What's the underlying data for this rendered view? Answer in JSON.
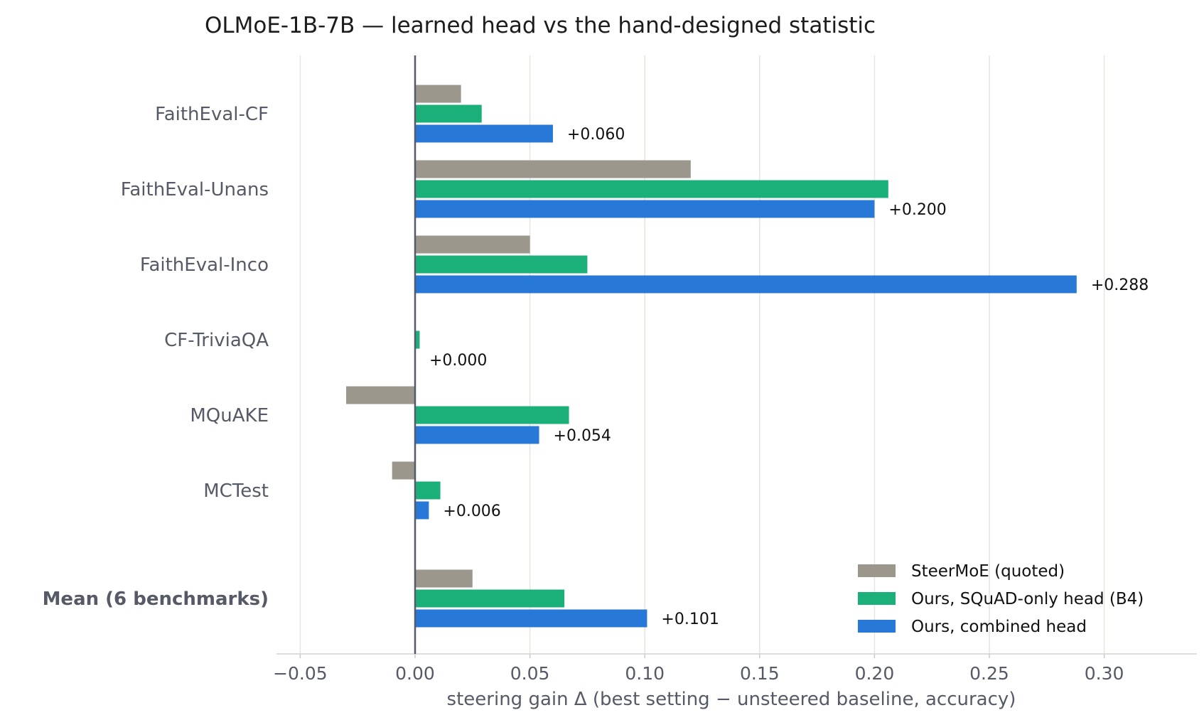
{
  "chart_data": {
    "type": "bar",
    "orientation": "horizontal",
    "title": "OLMoE-1B-7B — learned head vs the hand-designed statistic",
    "xlabel": "steering gain Δ  (best setting − unsteered baseline, accuracy)",
    "ylabel": "",
    "xlim": [
      -0.06,
      0.341
    ],
    "xticks": [
      -0.05,
      0.0,
      0.05,
      0.1,
      0.15,
      0.2,
      0.25,
      0.3
    ],
    "xtick_labels": [
      "−0.05",
      "0.00",
      "0.05",
      "0.10",
      "0.15",
      "0.20",
      "0.25",
      "0.30"
    ],
    "grid": "vertical",
    "categories": [
      "FaithEval-CF",
      "FaithEval-Unans",
      "FaithEval-Inco",
      "CF-TriviaQA",
      "MQuAKE",
      "MCTest",
      "Mean (6 benchmarks)"
    ],
    "bold_categories": [
      "Mean (6 benchmarks)"
    ],
    "series": [
      {
        "name": "SteerMoE (quoted)",
        "color": "#9b978d",
        "values": [
          0.02,
          0.12,
          0.05,
          0.0,
          -0.03,
          -0.01,
          0.025
        ]
      },
      {
        "name": "Ours, SQuAD-only head (B4)",
        "color": "#1bb07a",
        "values": [
          0.029,
          0.206,
          0.075,
          0.002,
          0.067,
          0.011,
          0.065
        ]
      },
      {
        "name": "Ours, combined head",
        "color": "#2878d8",
        "values": [
          0.06,
          0.2,
          0.288,
          0.0,
          0.054,
          0.006,
          0.101
        ]
      }
    ],
    "data_labels": [
      "+0.060",
      "+0.200",
      "+0.288",
      "+0.000",
      "+0.054",
      "+0.006",
      "+0.101"
    ],
    "legend_position": "lower-right"
  }
}
